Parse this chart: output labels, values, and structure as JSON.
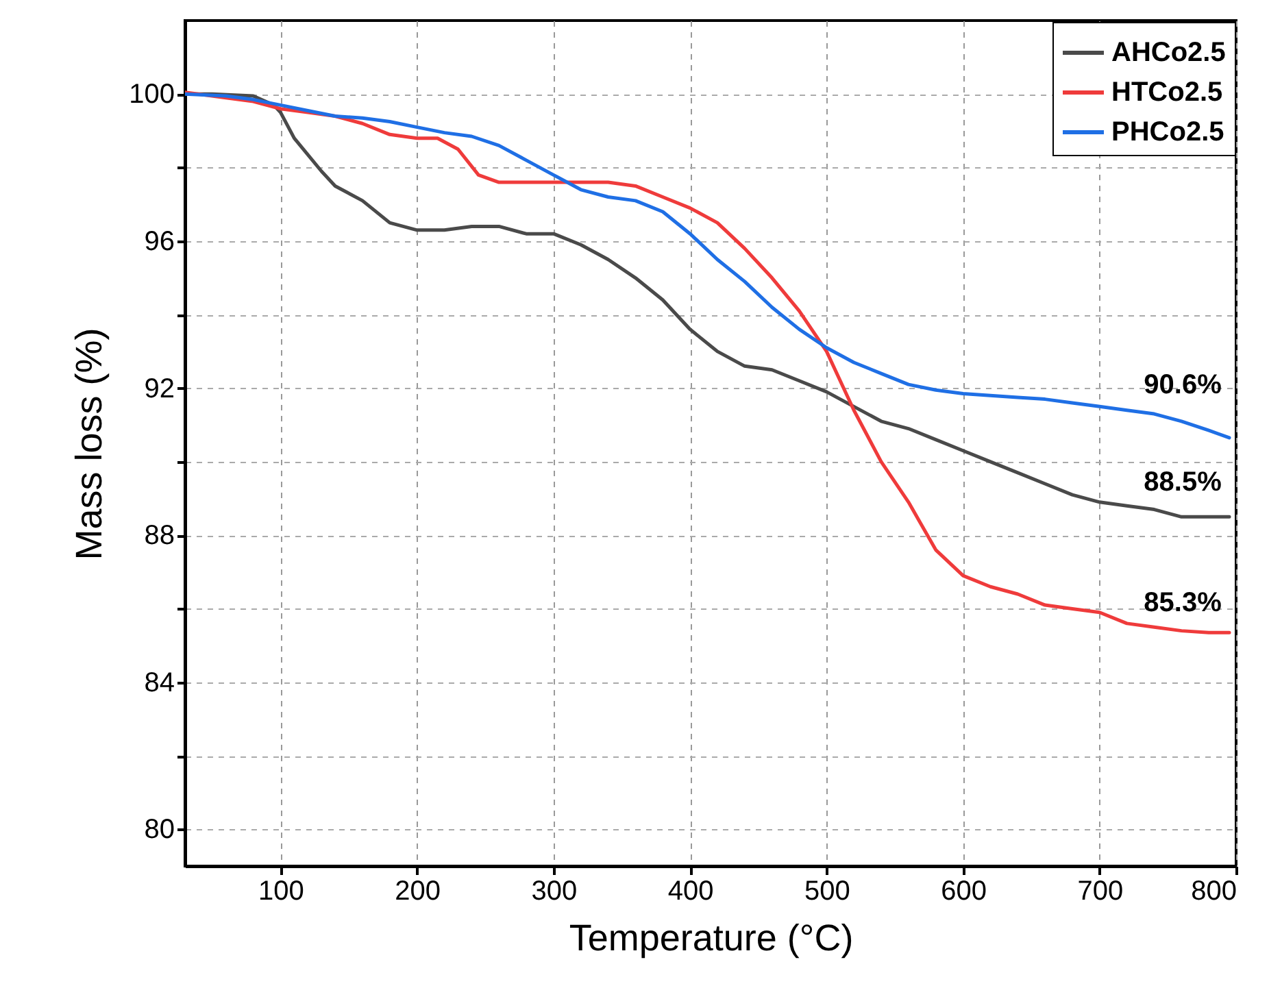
{
  "chart_data": {
    "type": "line",
    "xlabel": "Temperature (°C)",
    "ylabel": "Mass loss (%)",
    "xlim": [
      30,
      800
    ],
    "xticks": [
      100,
      200,
      300,
      400,
      500,
      600,
      700,
      800
    ],
    "ylim": [
      79,
      102
    ],
    "yticks": [
      80,
      {
        "value": 82,
        "label": null
      },
      84,
      {
        "value": 86,
        "label": null
      },
      88,
      {
        "value": 90,
        "label": null
      },
      92,
      {
        "value": 94,
        "label": null
      },
      96,
      {
        "value": 98,
        "label": null
      },
      100
    ],
    "grid": true,
    "legend": "top right",
    "line_style": "solid",
    "marker": "none",
    "series": [
      {
        "name": "AHCo2.5",
        "color": "#4a4a4a",
        "x": [
          30,
          50,
          80,
          95,
          100,
          110,
          130,
          140,
          160,
          180,
          200,
          220,
          240,
          260,
          280,
          300,
          320,
          340,
          360,
          380,
          400,
          420,
          440,
          460,
          480,
          500,
          520,
          540,
          560,
          580,
          600,
          620,
          640,
          660,
          680,
          700,
          720,
          740,
          760,
          780,
          795
        ],
        "values": [
          100,
          100,
          99.95,
          99.7,
          99.5,
          98.8,
          97.9,
          97.5,
          97.1,
          96.5,
          96.3,
          96.3,
          96.4,
          96.4,
          96.2,
          96.2,
          95.9,
          95.5,
          95,
          94.4,
          93.6,
          93,
          92.6,
          92.5,
          92.2,
          91.9,
          91.5,
          91.1,
          90.9,
          90.6,
          90.3,
          90,
          89.7,
          89.4,
          89.1,
          88.9,
          88.8,
          88.7,
          88.5,
          88.5,
          88.5
        ]
      },
      {
        "name": "HTCo2.5",
        "color": "#ef3b3b",
        "x": [
          30,
          60,
          80,
          100,
          120,
          140,
          160,
          180,
          200,
          215,
          230,
          245,
          260,
          280,
          300,
          320,
          340,
          360,
          380,
          400,
          420,
          440,
          460,
          480,
          500,
          520,
          540,
          560,
          580,
          600,
          620,
          640,
          660,
          680,
          700,
          720,
          740,
          760,
          780,
          795
        ],
        "values": [
          100.05,
          99.9,
          99.8,
          99.6,
          99.5,
          99.4,
          99.2,
          98.9,
          98.8,
          98.8,
          98.5,
          97.8,
          97.6,
          97.6,
          97.6,
          97.6,
          97.6,
          97.5,
          97.2,
          96.9,
          96.5,
          95.8,
          95,
          94.1,
          93,
          91.4,
          90,
          88.9,
          87.6,
          86.9,
          86.6,
          86.4,
          86.1,
          86,
          85.9,
          85.6,
          85.5,
          85.4,
          85.35,
          85.35
        ]
      },
      {
        "name": "PHCo2.5",
        "color": "#1f6fe5",
        "x": [
          30,
          60,
          80,
          100,
          120,
          140,
          160,
          180,
          200,
          220,
          240,
          260,
          280,
          300,
          320,
          340,
          360,
          380,
          400,
          420,
          440,
          460,
          480,
          500,
          520,
          540,
          560,
          580,
          600,
          620,
          640,
          660,
          680,
          700,
          720,
          740,
          760,
          780,
          795
        ],
        "values": [
          100,
          99.95,
          99.85,
          99.7,
          99.55,
          99.4,
          99.35,
          99.25,
          99.1,
          98.95,
          98.85,
          98.6,
          98.2,
          97.8,
          97.4,
          97.2,
          97.1,
          96.8,
          96.2,
          95.5,
          94.9,
          94.2,
          93.6,
          93.1,
          92.7,
          92.4,
          92.1,
          91.95,
          91.85,
          91.8,
          91.75,
          91.7,
          91.6,
          91.5,
          91.4,
          91.3,
          91.1,
          90.85,
          90.65
        ]
      }
    ],
    "annotations": [
      "90.6%",
      "88.5%",
      "85.3%"
    ]
  }
}
